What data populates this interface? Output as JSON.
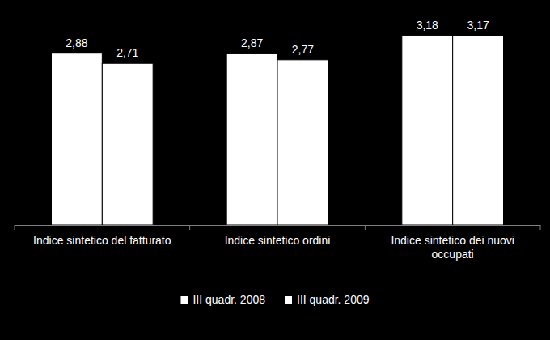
{
  "chart_data": {
    "type": "bar",
    "categories": [
      "Indice sintetico del fatturato",
      "Indice sintetico ordini",
      "Indice sintetico dei nuovi occupati"
    ],
    "series": [
      {
        "name": "III quadr. 2008",
        "color": "#ffffff",
        "values": [
          2.88,
          2.87,
          3.18
        ],
        "value_labels": [
          "2,88",
          "2,87",
          "3,18"
        ]
      },
      {
        "name": "III quadr. 2009",
        "color": "#ffffff",
        "values": [
          2.71,
          2.77,
          3.17
        ],
        "value_labels": [
          "2,71",
          "2,77",
          "3,17"
        ]
      }
    ],
    "ylim": [
      0,
      3.5
    ],
    "tick_labels": "x",
    "data_labels": true,
    "legend": "bottom",
    "grid": false
  }
}
